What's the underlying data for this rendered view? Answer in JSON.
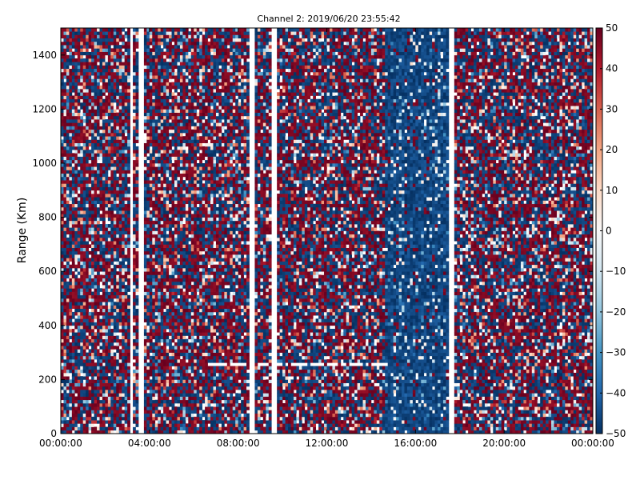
{
  "chart_data": {
    "type": "heatmap",
    "title": "Channel 2: 2019/06/20 23:55:42",
    "xlabel": "",
    "ylabel": "Range (Km)",
    "xlim_hours": [
      0,
      24
    ],
    "ylim": [
      0,
      1500
    ],
    "x_ticks": [
      {
        "value": 0,
        "label": "00:00:00"
      },
      {
        "value": 4,
        "label": "04:00:00"
      },
      {
        "value": 8,
        "label": "08:00:00"
      },
      {
        "value": 12,
        "label": "12:00:00"
      },
      {
        "value": 16,
        "label": "16:00:00"
      },
      {
        "value": 20,
        "label": "20:00:00"
      },
      {
        "value": 24,
        "label": "00:00:00"
      }
    ],
    "y_ticks": [
      0,
      200,
      400,
      600,
      800,
      1000,
      1200,
      1400
    ],
    "colorbar": {
      "min": -50,
      "max": 50,
      "ticks": [
        -50,
        -40,
        -30,
        -20,
        -10,
        0,
        10,
        20,
        30,
        40,
        50
      ],
      "colormap": "RdBu_r",
      "low_color": "#053061",
      "mid_color": "#f7f7f7",
      "high_color": "#67001f"
    },
    "pattern": "noisy signed values between -50 and 50 across time (x) and range (y)",
    "gaps_hours": [
      [
        3.1,
        3.25
      ],
      [
        3.55,
        3.7
      ],
      [
        8.45,
        8.8
      ],
      [
        9.45,
        9.75
      ],
      [
        17.55,
        17.7
      ]
    ],
    "mostly_negative_band_hours": [
      14.6,
      17.5
    ],
    "horizontal_gap_line": {
      "range_km": 255,
      "from_hours": 6.6,
      "to_hours": 14.6
    }
  }
}
